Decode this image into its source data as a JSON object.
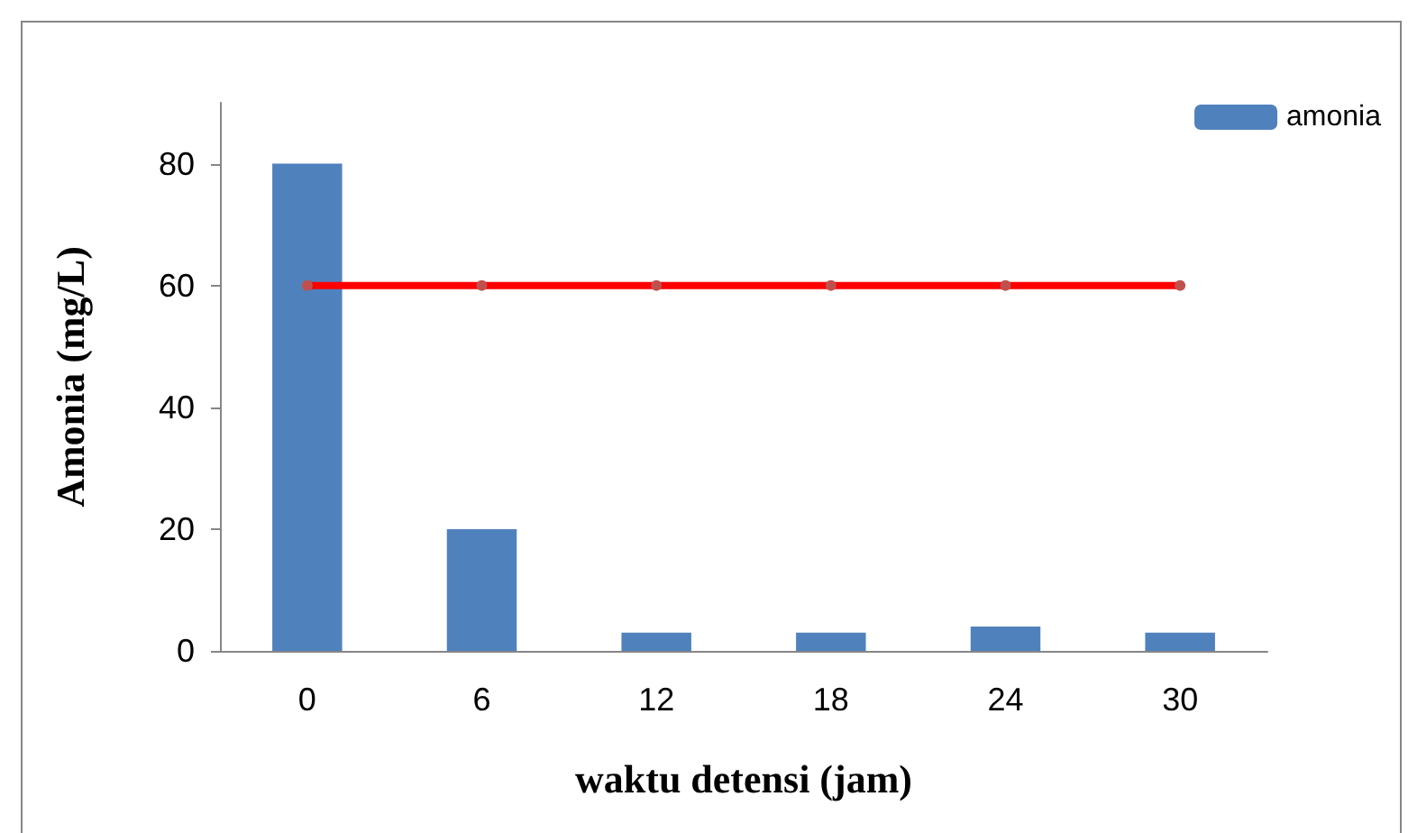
{
  "chart_data": {
    "type": "bar",
    "categories": [
      "0",
      "6",
      "12",
      "18",
      "24",
      "30"
    ],
    "xlabel": "waktu detensi (jam)",
    "ylabel": "Amonia (mg/L)",
    "ylim": [
      0,
      90
    ],
    "yticks": [
      0,
      20,
      40,
      60,
      80
    ],
    "grid": false,
    "legend": "top right",
    "marker": "circle",
    "series": [
      {
        "name": "amonia",
        "color": "#4f81bd",
        "values": [
          80,
          20,
          3,
          3,
          4,
          3
        ]
      },
      {
        "type": "line",
        "color": "#ff0000",
        "values": [
          60,
          60,
          60,
          60,
          60,
          60
        ]
      }
    ]
  }
}
